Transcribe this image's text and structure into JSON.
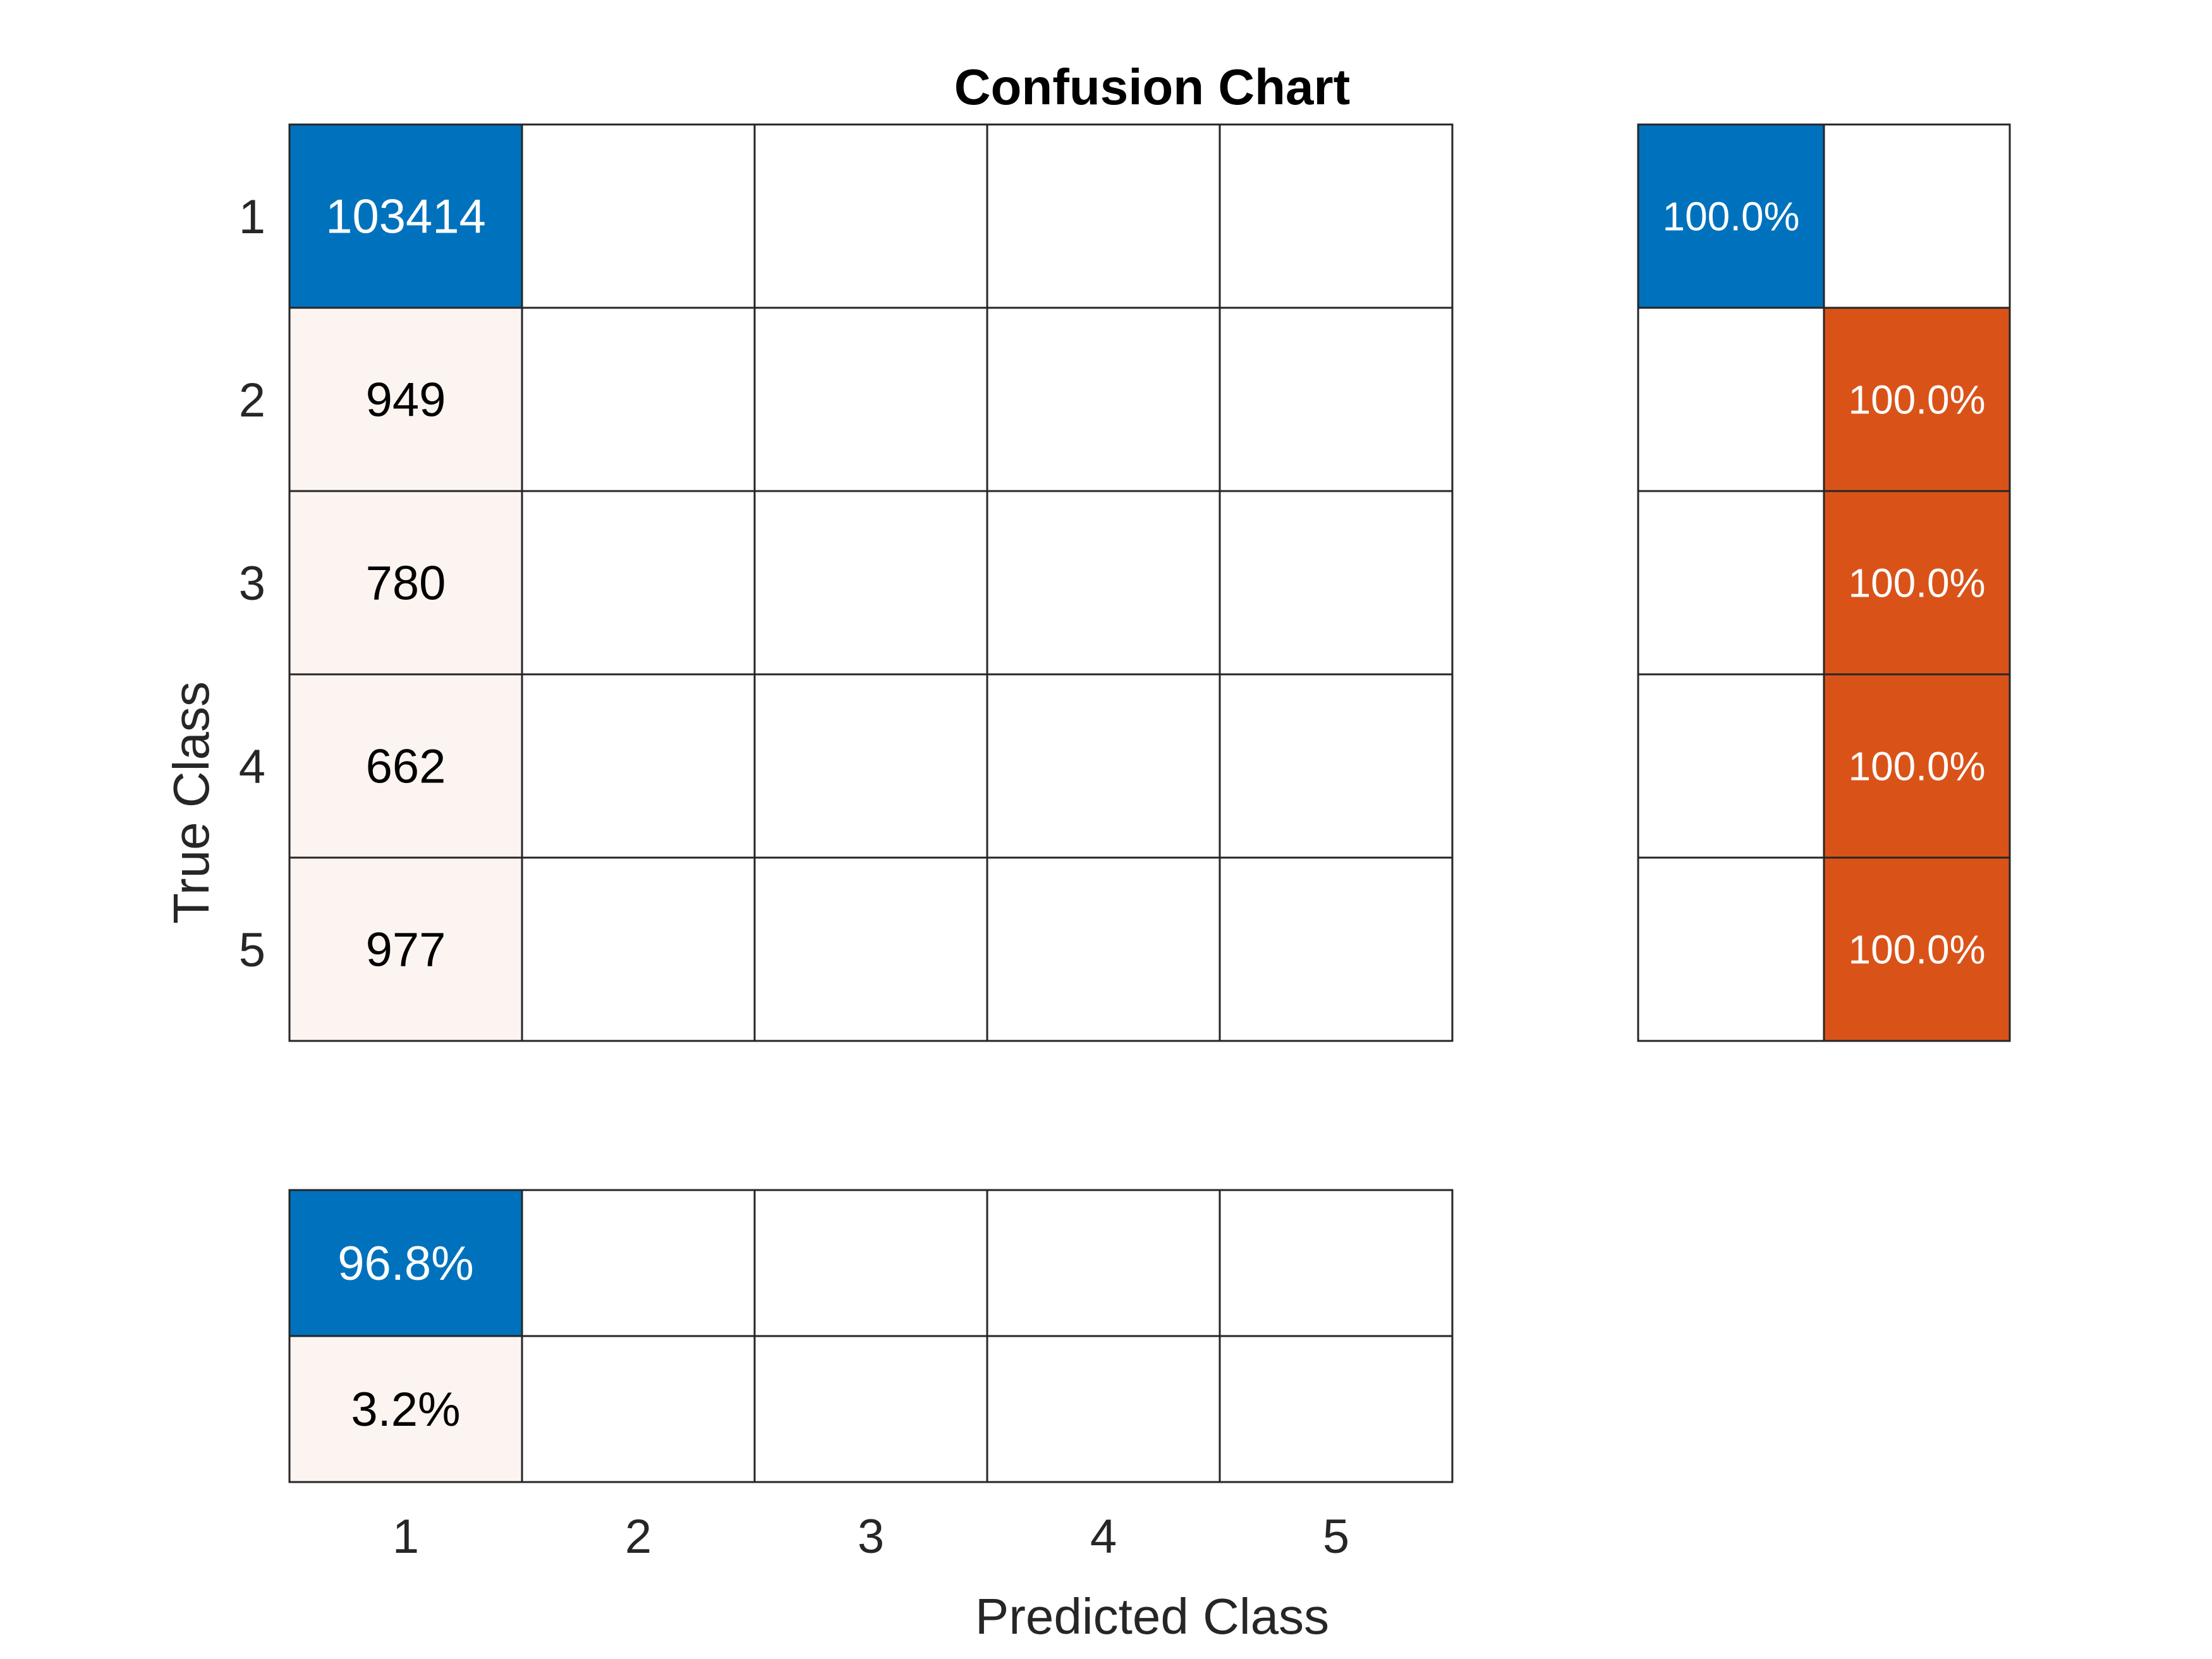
{
  "chart_data": {
    "type": "heatmap",
    "title": "Confusion Chart",
    "xlabel": "Predicted Class",
    "ylabel": "True Class",
    "classes": [
      "1",
      "2",
      "3",
      "4",
      "5"
    ],
    "matrix": [
      [
        103414,
        null,
        null,
        null,
        null
      ],
      [
        949,
        null,
        null,
        null,
        null
      ],
      [
        780,
        null,
        null,
        null,
        null
      ],
      [
        662,
        null,
        null,
        null,
        null
      ],
      [
        977,
        null,
        null,
        null,
        null
      ]
    ],
    "matrix_labels": [
      [
        "103414",
        "",
        "",
        "",
        ""
      ],
      [
        "949",
        "",
        "",
        "",
        ""
      ],
      [
        "780",
        "",
        "",
        "",
        ""
      ],
      [
        "662",
        "",
        "",
        "",
        ""
      ],
      [
        "977",
        "",
        "",
        "",
        ""
      ]
    ],
    "row_summary": [
      {
        "correct": 100.0,
        "incorrect": null,
        "correct_label": "100.0%",
        "incorrect_label": ""
      },
      {
        "correct": null,
        "incorrect": 100.0,
        "correct_label": "",
        "incorrect_label": "100.0%"
      },
      {
        "correct": null,
        "incorrect": 100.0,
        "correct_label": "",
        "incorrect_label": "100.0%"
      },
      {
        "correct": null,
        "incorrect": 100.0,
        "correct_label": "",
        "incorrect_label": "100.0%"
      },
      {
        "correct": null,
        "incorrect": 100.0,
        "correct_label": "",
        "incorrect_label": "100.0%"
      }
    ],
    "column_summary": {
      "correct": [
        96.8,
        null,
        null,
        null,
        null
      ],
      "incorrect": [
        3.2,
        null,
        null,
        null,
        null
      ],
      "correct_labels": [
        "96.8%",
        "",
        "",
        "",
        ""
      ],
      "incorrect_labels": [
        "3.2%",
        "",
        "",
        "",
        ""
      ]
    },
    "colors": {
      "correct": "#0072BD",
      "incorrect": "#D95319",
      "offdiag_light": "#FCF4F1",
      "grid": "#262626",
      "text_dark": "#262626"
    }
  }
}
